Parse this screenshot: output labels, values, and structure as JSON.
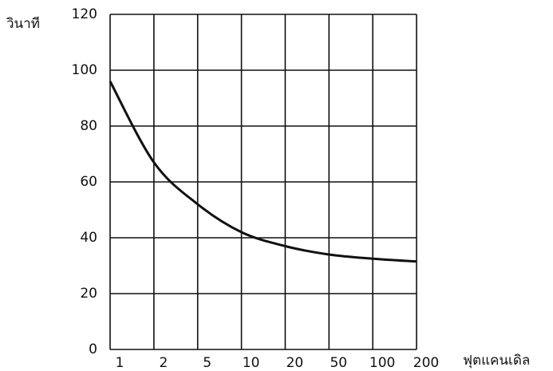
{
  "chart_data": {
    "type": "line",
    "y_label": "วินาที",
    "x_label": "ฟุตแคนเดิล",
    "categories": [
      "1",
      "2",
      "5",
      "10",
      "20",
      "50",
      "100",
      "200"
    ],
    "series": [
      {
        "color": "#111111",
        "values": [
          96,
          67,
          52,
          42,
          37,
          34,
          32.5,
          31.5
        ]
      }
    ],
    "ylim": [
      0,
      120
    ],
    "yticks": [
      0,
      20,
      40,
      60,
      80,
      100,
      120
    ],
    "grid": true
  }
}
